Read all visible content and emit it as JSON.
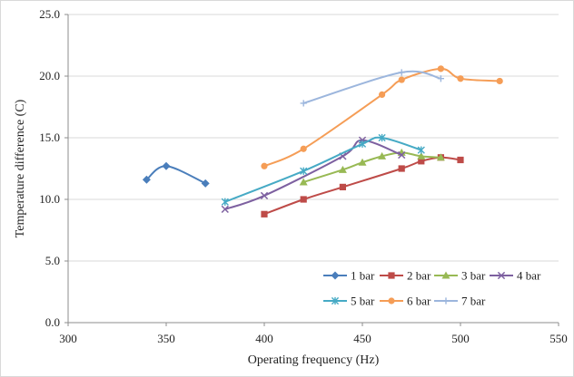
{
  "chart_data": {
    "type": "line",
    "title": "",
    "xlabel": "Operating frequency (Hz)",
    "ylabel": "Temperature difference (C)",
    "xlim": [
      300,
      550
    ],
    "ylim": [
      0,
      25
    ],
    "x_ticks": [
      300,
      350,
      400,
      450,
      500,
      550
    ],
    "y_ticks": [
      "0.0",
      "5.0",
      "10.0",
      "15.0",
      "20.0",
      "25.0"
    ],
    "grid": "horizontal",
    "legend_position": "bottom-right inside plot",
    "series": [
      {
        "name": "1 bar",
        "color": "#4a7ebb",
        "marker": "diamond",
        "x": [
          340,
          350,
          370
        ],
        "y": [
          11.6,
          12.7,
          11.3
        ]
      },
      {
        "name": "2 bar",
        "color": "#be4b48",
        "marker": "square",
        "x": [
          400,
          420,
          440,
          470,
          480,
          490,
          500
        ],
        "y": [
          8.8,
          10.0,
          11.0,
          12.5,
          13.1,
          13.4,
          13.2
        ]
      },
      {
        "name": "3 bar",
        "color": "#98b954",
        "marker": "triangle",
        "x": [
          420,
          440,
          450,
          460,
          470,
          480,
          490
        ],
        "y": [
          11.4,
          12.4,
          13.0,
          13.5,
          13.8,
          13.5,
          13.4
        ]
      },
      {
        "name": "4 bar",
        "color": "#7d60a0",
        "marker": "x",
        "x": [
          380,
          400,
          440,
          450,
          470
        ],
        "y": [
          9.2,
          10.3,
          13.5,
          14.8,
          13.6
        ]
      },
      {
        "name": "5 bar",
        "color": "#46aac5",
        "marker": "star",
        "x": [
          380,
          420,
          450,
          460,
          480
        ],
        "y": [
          9.8,
          12.3,
          14.5,
          15.0,
          14.0
        ]
      },
      {
        "name": "6 bar",
        "color": "#f59d56",
        "marker": "circle",
        "x": [
          400,
          420,
          460,
          470,
          490,
          500,
          520
        ],
        "y": [
          12.7,
          14.1,
          18.5,
          19.7,
          20.6,
          19.8,
          19.6
        ]
      },
      {
        "name": "7 bar",
        "color": "#9cb6dd",
        "marker": "plus",
        "x": [
          420,
          470,
          490
        ],
        "y": [
          17.8,
          20.3,
          19.8
        ]
      }
    ]
  }
}
